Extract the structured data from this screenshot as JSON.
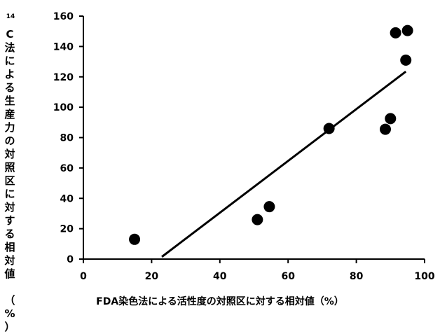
{
  "chart_data": {
    "type": "scatter",
    "x": [
      15,
      51,
      54.5,
      72,
      88.5,
      90,
      91.5,
      94.5,
      95
    ],
    "y": [
      13,
      26,
      34.5,
      86,
      85.5,
      92.5,
      149,
      131,
      150.5
    ],
    "trendline": {
      "x": [
        23,
        94.5
      ],
      "y": [
        1.5,
        123.5
      ]
    },
    "xlim": [
      0,
      100
    ],
    "ylim": [
      0,
      160
    ],
    "xticks": [
      "0",
      "20",
      "40",
      "60",
      "80",
      "100"
    ],
    "yticks": [
      "0",
      "20",
      "40",
      "60",
      "80",
      "100",
      "120",
      "140",
      "160"
    ],
    "xlabel": "FDA染色法による活性度の対照区に対する相対値（%）",
    "ylabel_sup": "14",
    "ylabel": "C法による生産力の対照区に対する相対値　（%）",
    "grid": false,
    "colors": {
      "marker": "#000000",
      "line": "#000000"
    }
  }
}
